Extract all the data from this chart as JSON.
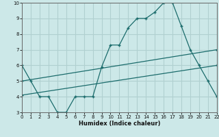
{
  "xlabel": "Humidex (Indice chaleur)",
  "xlim": [
    0,
    22
  ],
  "ylim": [
    3,
    10
  ],
  "xticks": [
    0,
    1,
    2,
    3,
    4,
    5,
    6,
    7,
    8,
    9,
    10,
    11,
    12,
    13,
    14,
    15,
    16,
    17,
    18,
    19,
    20,
    21,
    22
  ],
  "yticks": [
    3,
    4,
    5,
    6,
    7,
    8,
    9,
    10
  ],
  "line_color": "#1a6b6b",
  "bg_color": "#cce8e8",
  "grid_color": "#b0d0d0",
  "line1_x": [
    0,
    1,
    2,
    3,
    4,
    5,
    6,
    7,
    8,
    9,
    10,
    11,
    12,
    13,
    14,
    15,
    16,
    17,
    18,
    19,
    20,
    21,
    22
  ],
  "line1_y": [
    6,
    5,
    4,
    4,
    3,
    3,
    4,
    4,
    4,
    5.9,
    7.3,
    7.3,
    8.4,
    9.0,
    9.0,
    9.4,
    10,
    10,
    8.5,
    7.0,
    6.0,
    5.0,
    4.0
  ],
  "line2_x": [
    0,
    22
  ],
  "line2_y": [
    4.1,
    6.0
  ],
  "line3_x": [
    0,
    22
  ],
  "line3_y": [
    5.0,
    7.0
  ]
}
